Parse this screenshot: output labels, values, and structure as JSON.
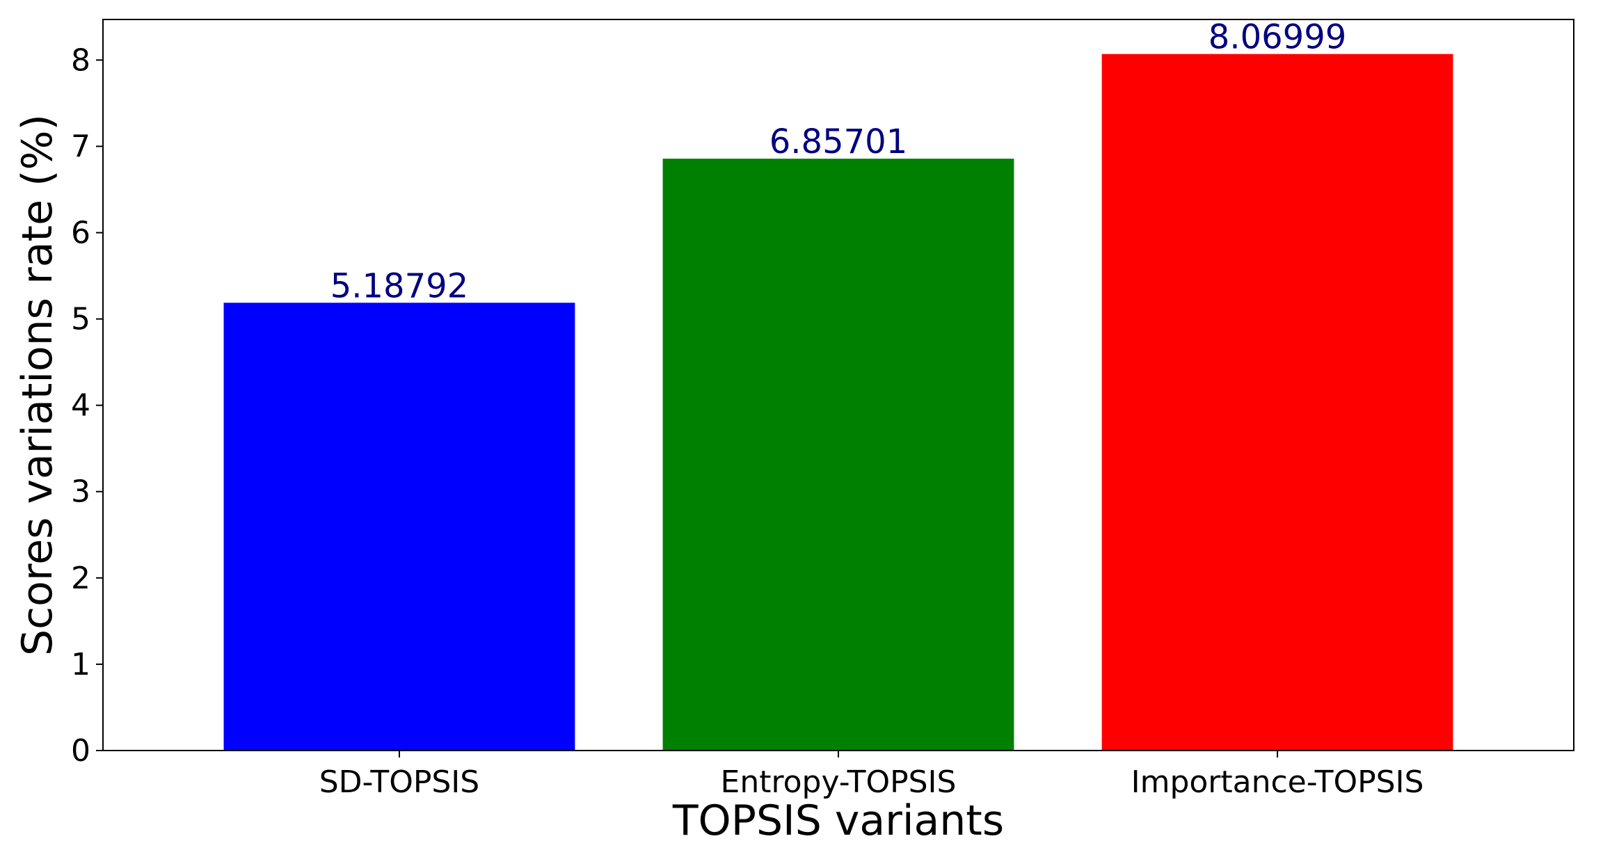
{
  "chart_data": {
    "type": "bar",
    "categories": [
      "SD-TOPSIS",
      "Entropy-TOPSIS",
      "Importance-TOPSIS"
    ],
    "values": [
      5.18792,
      6.85701,
      8.06999
    ],
    "value_labels": [
      "5.18792",
      "6.85701",
      "8.06999"
    ],
    "colors": [
      "#0000ff",
      "#008000",
      "#ff0000"
    ],
    "label_color": "#000080",
    "xlabel": "TOPSIS variants",
    "ylabel": "Scores variations rate (%)",
    "ylim": [
      0,
      8.47
    ],
    "yticks": [
      0,
      1,
      2,
      3,
      4,
      5,
      6,
      7,
      8
    ],
    "grid": false,
    "legend": false
  }
}
